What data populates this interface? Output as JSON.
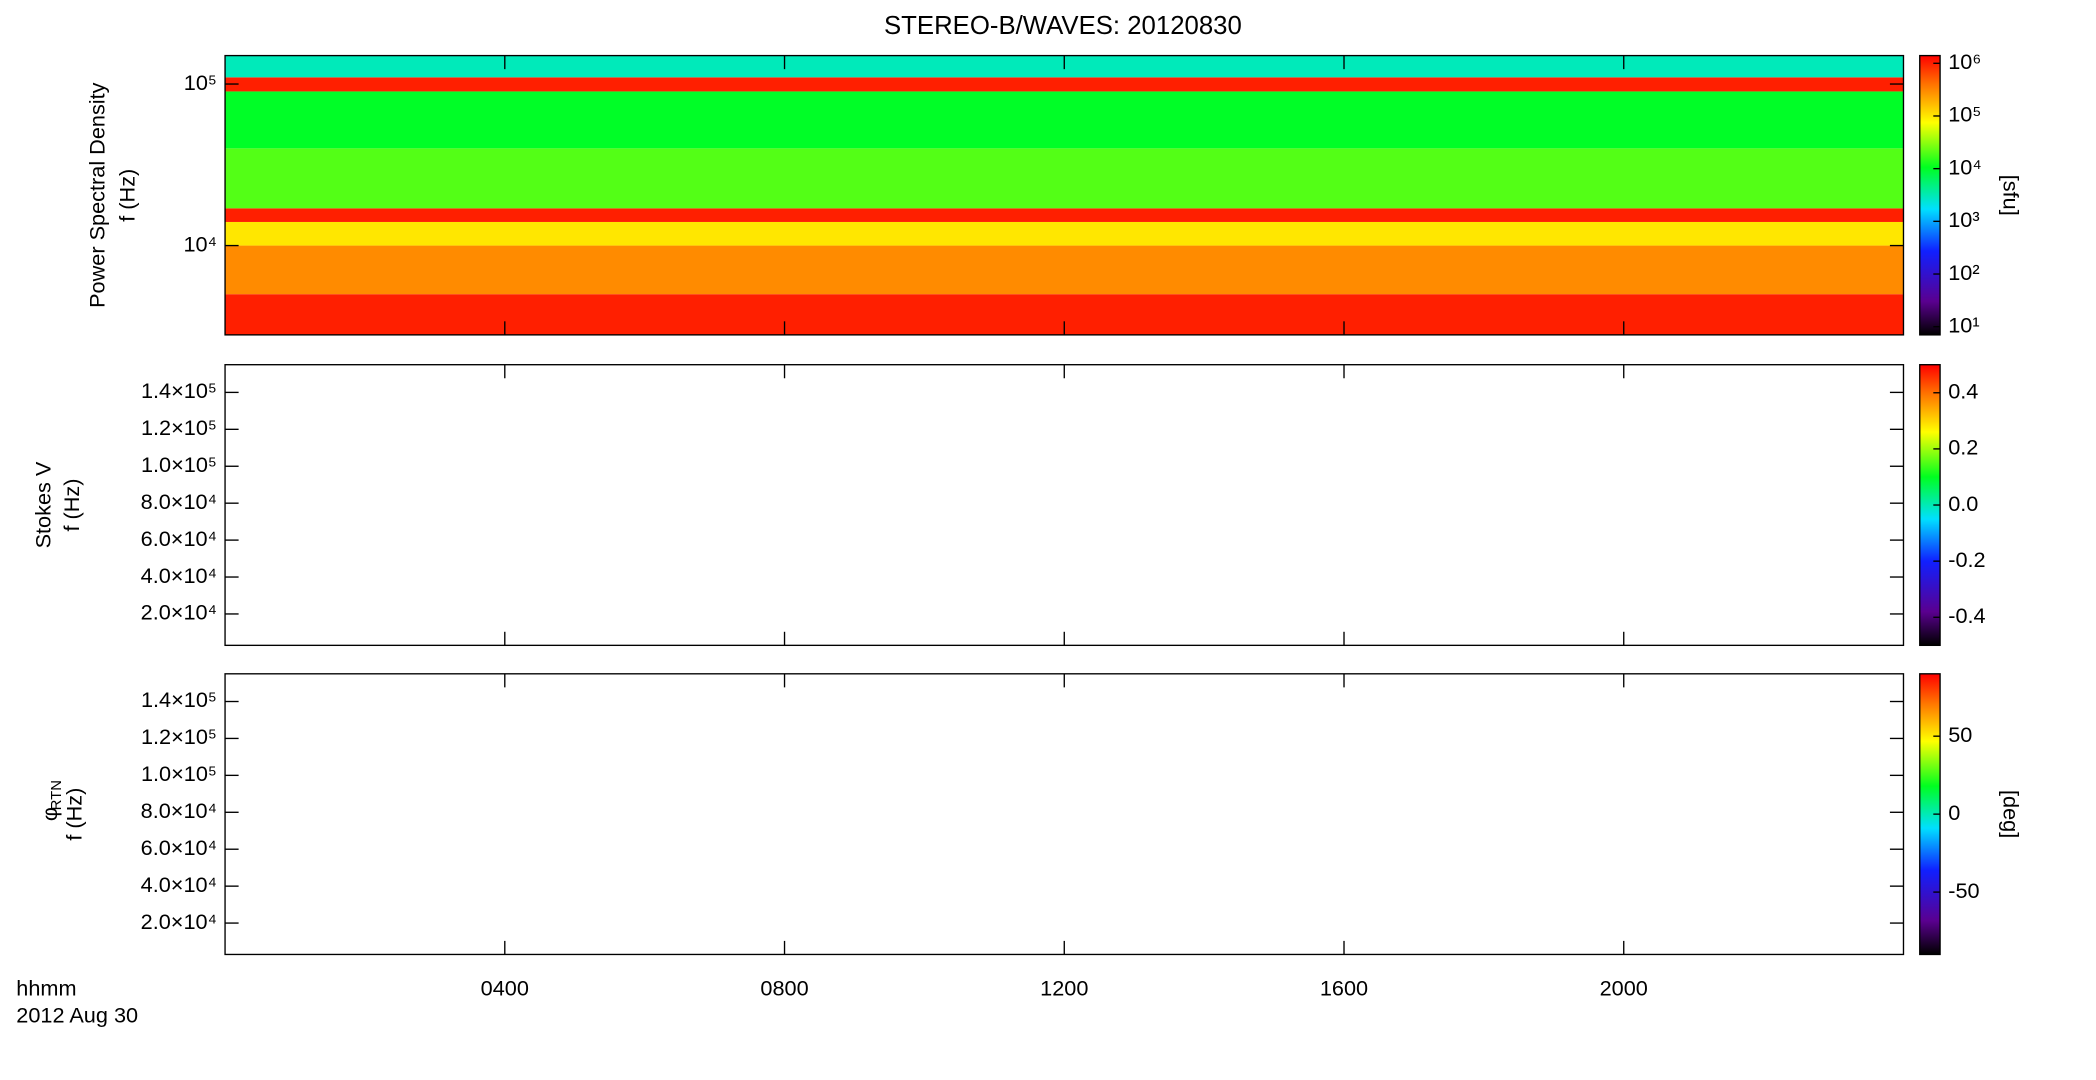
{
  "title": "STEREO-B/WAVES: 20120830",
  "time_axis": {
    "label": "hhmm",
    "date": "2012 Aug 30",
    "xlim": [
      0,
      24
    ],
    "xticks": [
      {
        "value": 4,
        "label": "0400"
      },
      {
        "value": 8,
        "label": "0800"
      },
      {
        "value": 12,
        "label": "1200"
      },
      {
        "value": 16,
        "label": "1600"
      },
      {
        "value": 20,
        "label": "2000"
      }
    ]
  },
  "chart_data": [
    {
      "type": "heatmap",
      "ylabel": [
        "Power Spectral Density",
        "f (Hz)"
      ],
      "ylog": true,
      "ylim": [
        2800,
        150000
      ],
      "yticks": [
        {
          "value": 10000,
          "label": "10⁴"
        },
        {
          "value": 100000,
          "label": "10⁵"
        }
      ],
      "bands": [
        2800,
        5000,
        10000,
        14000,
        17000,
        40000,
        90000,
        110000,
        150000
      ],
      "values": [
        1000000,
        300000,
        100000,
        1000000,
        20000,
        10000,
        1000000,
        3000
      ],
      "colorbar": {
        "log": true,
        "lim": [
          7,
          1400000
        ],
        "label": "[sfu]",
        "ticks": [
          {
            "value": 10,
            "label": "10¹"
          },
          {
            "value": 100,
            "label": "10²"
          },
          {
            "value": 1000,
            "label": "10³"
          },
          {
            "value": 10000,
            "label": "10⁴"
          },
          {
            "value": 100000,
            "label": "10⁵"
          },
          {
            "value": 1000000,
            "label": "10⁶"
          }
        ]
      }
    },
    {
      "type": "heatmap",
      "ylabel": [
        "Stokes V",
        "f (Hz)"
      ],
      "ylog": false,
      "ylim": [
        3000,
        155000
      ],
      "yticks": [
        {
          "value": 20000,
          "label": "2.0×10⁴"
        },
        {
          "value": 40000,
          "label": "4.0×10⁴"
        },
        {
          "value": 60000,
          "label": "6.0×10⁴"
        },
        {
          "value": 80000,
          "label": "8.0×10⁴"
        },
        {
          "value": 100000,
          "label": "1.0×10⁵"
        },
        {
          "value": 120000,
          "label": "1.2×10⁵"
        },
        {
          "value": 140000,
          "label": "1.4×10⁵"
        }
      ],
      "colorbar": {
        "log": false,
        "lim": [
          -0.5,
          0.5
        ],
        "ticks": [
          -0.4,
          -0.2,
          {
            "value": 0,
            "label": "0.0"
          },
          0.2,
          0.4
        ]
      }
    },
    {
      "type": "heatmap",
      "ylabel": [
        "f (Hz)"
      ],
      "ylabel_symbol": "φ",
      "ylabel_subscript": "RTN",
      "ylog": false,
      "ylim": [
        3000,
        155000
      ],
      "yticks": [
        {
          "value": 20000,
          "label": "2.0×10⁴"
        },
        {
          "value": 40000,
          "label": "4.0×10⁴"
        },
        {
          "value": 60000,
          "label": "6.0×10⁴"
        },
        {
          "value": 80000,
          "label": "8.0×10⁴"
        },
        {
          "value": 100000,
          "label": "1.0×10⁵"
        },
        {
          "value": 120000,
          "label": "1.2×10⁵"
        },
        {
          "value": 140000,
          "label": "1.4×10⁵"
        }
      ],
      "colorbar": {
        "log": false,
        "lim": [
          -90,
          90
        ],
        "label": "[deg]",
        "ticks": [
          -50,
          0,
          50
        ]
      }
    }
  ]
}
